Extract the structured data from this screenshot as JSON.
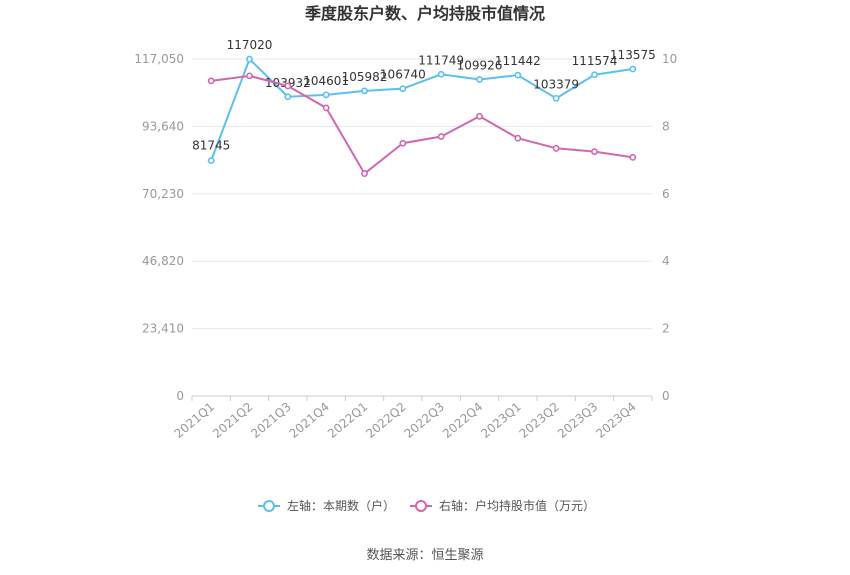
{
  "chart_data": {
    "type": "line",
    "title": "季度股东户数、户均持股市值情况",
    "categories": [
      "2021Q1",
      "2021Q2",
      "2021Q3",
      "2021Q4",
      "2022Q1",
      "2022Q2",
      "2022Q3",
      "2022Q4",
      "2023Q1",
      "2023Q2",
      "2023Q3",
      "2023Q4"
    ],
    "left_axis": {
      "min": 0,
      "max": 117050,
      "ticks": [
        0,
        23410,
        46820,
        70230,
        93640,
        117050
      ],
      "tick_labels": [
        "0",
        "23,410",
        "46,820",
        "70,230",
        "93,640",
        "117,050"
      ]
    },
    "right_axis": {
      "min": 0,
      "max": 10,
      "ticks": [
        0,
        2,
        4,
        6,
        8,
        10
      ],
      "tick_labels": [
        "0",
        "2",
        "4",
        "6",
        "8",
        "10"
      ]
    },
    "series": [
      {
        "name": "左轴：本期数（户）",
        "axis": "left",
        "color": "#5bc0f0",
        "values": [
          81745,
          117020,
          103932,
          104601,
          105982,
          106740,
          111749,
          109926,
          111442,
          103379,
          111574,
          113575
        ],
        "labels": [
          "81745",
          "117020",
          "103932",
          "104601",
          "105982",
          "106740",
          "111749",
          "109926",
          "111442",
          "103379",
          "111574",
          "113575"
        ]
      },
      {
        "name": "右轴：户均持股市值（万元）",
        "axis": "right",
        "color": "#d466b0",
        "values": [
          9.35,
          9.5,
          9.2,
          8.55,
          6.6,
          7.5,
          7.7,
          8.3,
          7.65,
          7.35,
          7.25,
          7.08
        ]
      }
    ],
    "grid": true,
    "legend_position": "bottom"
  },
  "source_text": "数据来源：恒生聚源"
}
